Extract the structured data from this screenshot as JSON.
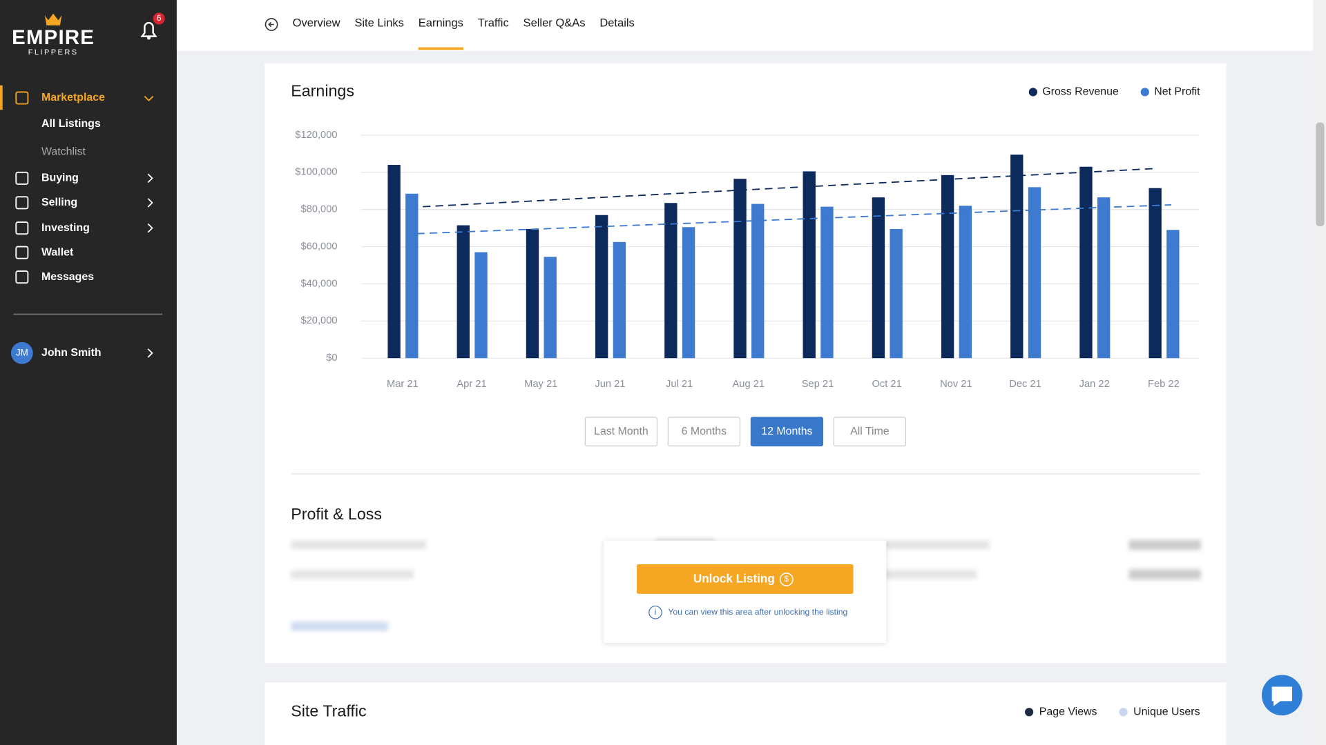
{
  "sidebar": {
    "brand": "EMPIRE",
    "brand_sub": "FLIPPERS",
    "notifications": 6,
    "menu": [
      "Marketplace",
      "Buying",
      "Selling",
      "Investing",
      "Wallet",
      "Messages"
    ],
    "submenu": [
      "All Listings",
      "Watchlist"
    ],
    "user": {
      "initials": "JM",
      "name": "John Smith"
    }
  },
  "tabs": [
    "Overview",
    "Site Links",
    "Earnings",
    "Traffic",
    "Seller Q&As",
    "Details"
  ],
  "active_tab": 2,
  "chart_data": {
    "type": "bar",
    "title": "Earnings",
    "categories": [
      "Mar 21",
      "Apr 21",
      "May 21",
      "Jun 21",
      "Jul 21",
      "Aug 21",
      "Sep 21",
      "Oct 21",
      "Nov 21",
      "Dec 21",
      "Jan 22",
      "Feb 22"
    ],
    "series": [
      {
        "name": "Gross Revenue",
        "color": "#0d2a5c",
        "values": [
          104000,
          71500,
          69500,
          77000,
          83500,
          96500,
          100500,
          86500,
          98500,
          109500,
          103000,
          91500
        ],
        "trend": [
          81500,
          102000
        ]
      },
      {
        "name": "Net Profit",
        "color": "#3d7ad0",
        "values": [
          88500,
          57000,
          54500,
          62500,
          70500,
          83000,
          81500,
          69500,
          82000,
          92000,
          86500,
          69000
        ],
        "trend": [
          67000,
          82500
        ]
      }
    ],
    "ylim": [
      0,
      120000
    ],
    "yticks": [
      {
        "value": 0,
        "label": "$0"
      },
      {
        "value": 20000,
        "label": "$20,000"
      },
      {
        "value": 40000,
        "label": "$40,000"
      },
      {
        "value": 60000,
        "label": "$60,000"
      },
      {
        "value": 80000,
        "label": "$80,000"
      },
      {
        "value": 100000,
        "label": "$100,000"
      },
      {
        "value": 120000,
        "label": "$120,000"
      }
    ],
    "grid": true,
    "legend": "top-right"
  },
  "ranges": [
    "Last Month",
    "6 Months",
    "12 Months",
    "All Time"
  ],
  "active_range": 2,
  "profit_loss": {
    "title": "Profit & Loss",
    "unlock_button": "Unlock Listing",
    "unlock_note": "You can view this area after unlocking the listing"
  },
  "site_traffic": {
    "title": "Site Traffic",
    "legend": [
      {
        "name": "Page Views",
        "color": "#1f2d44"
      },
      {
        "name": "Unique Users",
        "color": "#c9d6ee"
      }
    ]
  }
}
